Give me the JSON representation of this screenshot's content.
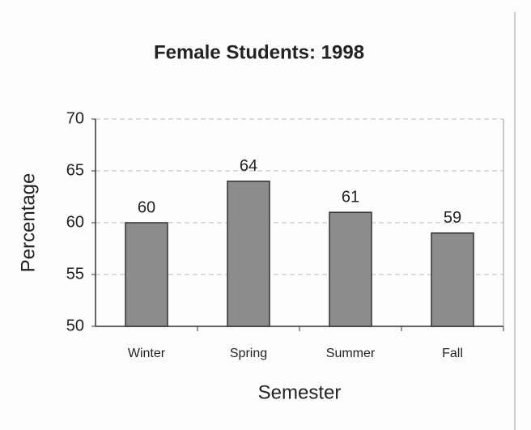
{
  "chart_data": {
    "type": "bar",
    "title": "Female Students: 1998",
    "x_label": "Semester",
    "y_label": "Percentage",
    "categories": [
      "Winter",
      "Spring",
      "Summer",
      "Fall"
    ],
    "values": [
      60,
      64,
      61,
      59
    ],
    "color": "#8c8c8c",
    "ylim": [
      50,
      70
    ],
    "yticks": [
      50,
      55,
      60,
      65,
      70
    ],
    "grid": true
  }
}
